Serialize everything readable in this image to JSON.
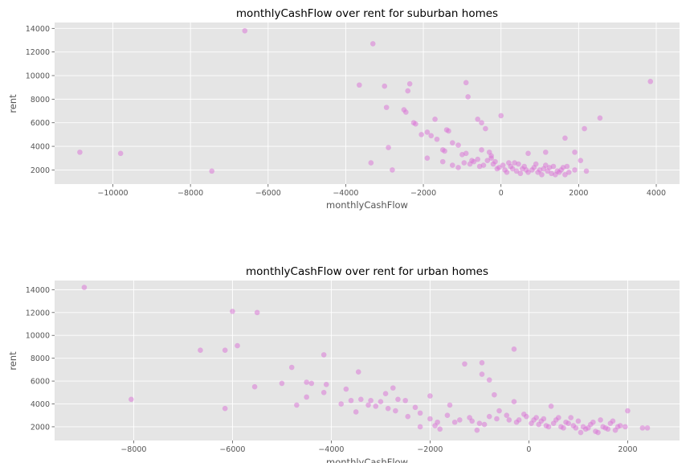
{
  "chart_data": [
    {
      "type": "scatter",
      "title": "monthlyCashFlow over rent for suburban homes",
      "xlabel": "monthlyCashFlow",
      "ylabel": "rent",
      "xlim": [
        -11500,
        4600
      ],
      "ylim": [
        800,
        14500
      ],
      "xticks": [
        -10000,
        -8000,
        -6000,
        -4000,
        -2000,
        0,
        2000,
        4000
      ],
      "xtick_labels": [
        "−10000",
        "−8000",
        "−6000",
        "−4000",
        "−2000",
        "0",
        "2000",
        "4000"
      ],
      "yticks": [
        2000,
        4000,
        6000,
        8000,
        10000,
        12000,
        14000
      ],
      "ytick_labels": [
        "2000",
        "4000",
        "6000",
        "8000",
        "10000",
        "12000",
        "14000"
      ],
      "grid": true,
      "point_color": "#da70d6",
      "series": [
        {
          "points": [
            [
              -10850,
              3500
            ],
            [
              -9800,
              3400
            ],
            [
              -7450,
              1900
            ],
            [
              -6600,
              13800
            ],
            [
              -3300,
              12700
            ],
            [
              -3650,
              9200
            ],
            [
              -3000,
              9100
            ],
            [
              -2350,
              9300
            ],
            [
              -2400,
              8700
            ],
            [
              -900,
              9400
            ],
            [
              3850,
              9500
            ],
            [
              -850,
              8200
            ],
            [
              -2950,
              7300
            ],
            [
              -2500,
              7100
            ],
            [
              -2450,
              6900
            ],
            [
              -1700,
              6300
            ],
            [
              -2250,
              6000
            ],
            [
              -2200,
              5900
            ],
            [
              -1400,
              5400
            ],
            [
              -1350,
              5300
            ],
            [
              -1900,
              5200
            ],
            [
              -2050,
              5000
            ],
            [
              -1800,
              4900
            ],
            [
              -1650,
              4600
            ],
            [
              -600,
              6300
            ],
            [
              -500,
              6000
            ],
            [
              -400,
              5500
            ],
            [
              0,
              6600
            ],
            [
              2550,
              6400
            ],
            [
              2150,
              5500
            ],
            [
              1650,
              4700
            ],
            [
              -2900,
              3900
            ],
            [
              -3350,
              2600
            ],
            [
              -2800,
              2000
            ],
            [
              -1250,
              4300
            ],
            [
              -1100,
              4100
            ],
            [
              -1500,
              3700
            ],
            [
              -1450,
              3600
            ],
            [
              -1900,
              3000
            ],
            [
              -1000,
              3300
            ],
            [
              -900,
              3400
            ],
            [
              -750,
              2800
            ],
            [
              -500,
              3700
            ],
            [
              -300,
              3500
            ],
            [
              -250,
              3000
            ],
            [
              200,
              2600
            ],
            [
              700,
              3400
            ],
            [
              1150,
              3500
            ],
            [
              1900,
              3500
            ],
            [
              2050,
              2800
            ],
            [
              2200,
              1900
            ],
            [
              -800,
              2500
            ],
            [
              -550,
              2300
            ],
            [
              -450,
              2400
            ],
            [
              -150,
              2700
            ],
            [
              -50,
              2200
            ],
            [
              100,
              2000
            ],
            [
              250,
              2300
            ],
            [
              400,
              1900
            ],
            [
              550,
              2100
            ],
            [
              700,
              1800
            ],
            [
              850,
              2200
            ],
            [
              1000,
              2000
            ],
            [
              1150,
              2400
            ],
            [
              1300,
              1700
            ],
            [
              1450,
              1900
            ],
            [
              1600,
              2200
            ],
            [
              1750,
              1800
            ],
            [
              1900,
              2000
            ],
            [
              -1250,
              2400
            ],
            [
              -1100,
              2200
            ],
            [
              -950,
              2600
            ],
            [
              -700,
              2700
            ],
            [
              -350,
              2800
            ],
            [
              -200,
              2500
            ],
            [
              50,
              2400
            ],
            [
              300,
              2100
            ],
            [
              450,
              2500
            ],
            [
              600,
              2300
            ],
            [
              800,
              2000
            ],
            [
              950,
              1800
            ],
            [
              1100,
              2100
            ],
            [
              1250,
              2200
            ],
            [
              1400,
              1600
            ],
            [
              1550,
              2000
            ],
            [
              1700,
              2300
            ],
            [
              -600,
              2900
            ],
            [
              -250,
              3200
            ],
            [
              -100,
              2100
            ],
            [
              150,
              1800
            ],
            [
              350,
              2600
            ],
            [
              500,
              1700
            ],
            [
              650,
              2000
            ],
            [
              900,
              2500
            ],
            [
              1050,
              1600
            ],
            [
              1200,
              1900
            ],
            [
              1350,
              2300
            ],
            [
              1500,
              1800
            ],
            [
              1650,
              1600
            ],
            [
              -1500,
              2700
            ]
          ]
        }
      ]
    },
    {
      "type": "scatter",
      "title": "monthlyCashFlow over rent for urban homes",
      "xlabel": "monthlyCashFlow",
      "ylabel": "rent",
      "xlim": [
        -9600,
        3050
      ],
      "ylim": [
        800,
        14800
      ],
      "xticks": [
        -8000,
        -6000,
        -4000,
        -2000,
        0,
        2000
      ],
      "xtick_labels": [
        "−8000",
        "−6000",
        "−4000",
        "−2000",
        "0",
        "2000"
      ],
      "yticks": [
        2000,
        4000,
        6000,
        8000,
        10000,
        12000,
        14000
      ],
      "ytick_labels": [
        "2000",
        "4000",
        "6000",
        "8000",
        "10000",
        "12000",
        "14000"
      ],
      "grid": true,
      "point_color": "#da70d6",
      "series": [
        {
          "points": [
            [
              -9000,
              14200
            ],
            [
              -8050,
              4400
            ],
            [
              -6000,
              12100
            ],
            [
              -5500,
              12000
            ],
            [
              -5900,
              9100
            ],
            [
              -6650,
              8700
            ],
            [
              -6150,
              8700
            ],
            [
              -6150,
              3600
            ],
            [
              -5550,
              5500
            ],
            [
              -5000,
              5800
            ],
            [
              -4800,
              7200
            ],
            [
              -4150,
              8300
            ],
            [
              -4700,
              3900
            ],
            [
              -4500,
              5900
            ],
            [
              -4400,
              5800
            ],
            [
              -4500,
              4600
            ],
            [
              -4100,
              5700
            ],
            [
              -4150,
              5000
            ],
            [
              -3800,
              4000
            ],
            [
              -3700,
              5300
            ],
            [
              -3600,
              4300
            ],
            [
              -3450,
              6800
            ],
            [
              -3400,
              4400
            ],
            [
              -3200,
              4300
            ],
            [
              -3000,
              4200
            ],
            [
              -2900,
              4900
            ],
            [
              -2750,
              5400
            ],
            [
              -2650,
              4400
            ],
            [
              -2500,
              4300
            ],
            [
              -2300,
              3700
            ],
            [
              -2000,
              4700
            ],
            [
              -1600,
              3900
            ],
            [
              -1300,
              7500
            ],
            [
              -950,
              7600
            ],
            [
              -950,
              6600
            ],
            [
              -800,
              6100
            ],
            [
              -300,
              8800
            ],
            [
              -3500,
              3300
            ],
            [
              -3250,
              3900
            ],
            [
              -3100,
              3800
            ],
            [
              -2850,
              3600
            ],
            [
              -2700,
              3400
            ],
            [
              -2450,
              2900
            ],
            [
              -2200,
              3200
            ],
            [
              -2000,
              2700
            ],
            [
              -1850,
              2400
            ],
            [
              -1650,
              3000
            ],
            [
              -1400,
              2600
            ],
            [
              -1200,
              2800
            ],
            [
              -1000,
              2300
            ],
            [
              -800,
              2900
            ],
            [
              -700,
              4800
            ],
            [
              -600,
              3400
            ],
            [
              -450,
              3000
            ],
            [
              -300,
              4200
            ],
            [
              -200,
              2600
            ],
            [
              -100,
              3100
            ],
            [
              50,
              2300
            ],
            [
              150,
              2800
            ],
            [
              250,
              2500
            ],
            [
              350,
              2100
            ],
            [
              450,
              3800
            ],
            [
              550,
              2600
            ],
            [
              650,
              2000
            ],
            [
              750,
              2400
            ],
            [
              850,
              2800
            ],
            [
              950,
              1900
            ],
            [
              1050,
              1500
            ],
            [
              1150,
              1800
            ],
            [
              1250,
              2200
            ],
            [
              1350,
              1600
            ],
            [
              1450,
              2600
            ],
            [
              1550,
              1900
            ],
            [
              1650,
              2300
            ],
            [
              1750,
              1700
            ],
            [
              1850,
              2100
            ],
            [
              1950,
              2000
            ],
            [
              2300,
              1900
            ],
            [
              2400,
              1900
            ],
            [
              -1900,
              2100
            ],
            [
              -1500,
              2400
            ],
            [
              -1150,
              2500
            ],
            [
              -900,
              2200
            ],
            [
              -650,
              2700
            ],
            [
              -400,
              2600
            ],
            [
              -250,
              2400
            ],
            [
              -50,
              2900
            ],
            [
              100,
              2600
            ],
            [
              200,
              2200
            ],
            [
              300,
              2700
            ],
            [
              400,
              2000
            ],
            [
              500,
              2300
            ],
            [
              600,
              2800
            ],
            [
              700,
              1900
            ],
            [
              800,
              2300
            ],
            [
              900,
              2100
            ],
            [
              1000,
              2500
            ],
            [
              1100,
              2000
            ],
            [
              1200,
              1900
            ],
            [
              1300,
              2400
            ],
            [
              1400,
              1500
            ],
            [
              1500,
              2000
            ],
            [
              1600,
              1800
            ],
            [
              1700,
              2500
            ],
            [
              1800,
              2000
            ],
            [
              2000,
              3400
            ],
            [
              -1050,
              1700
            ],
            [
              -1800,
              1800
            ],
            [
              -2200,
              2000
            ]
          ]
        }
      ]
    }
  ]
}
